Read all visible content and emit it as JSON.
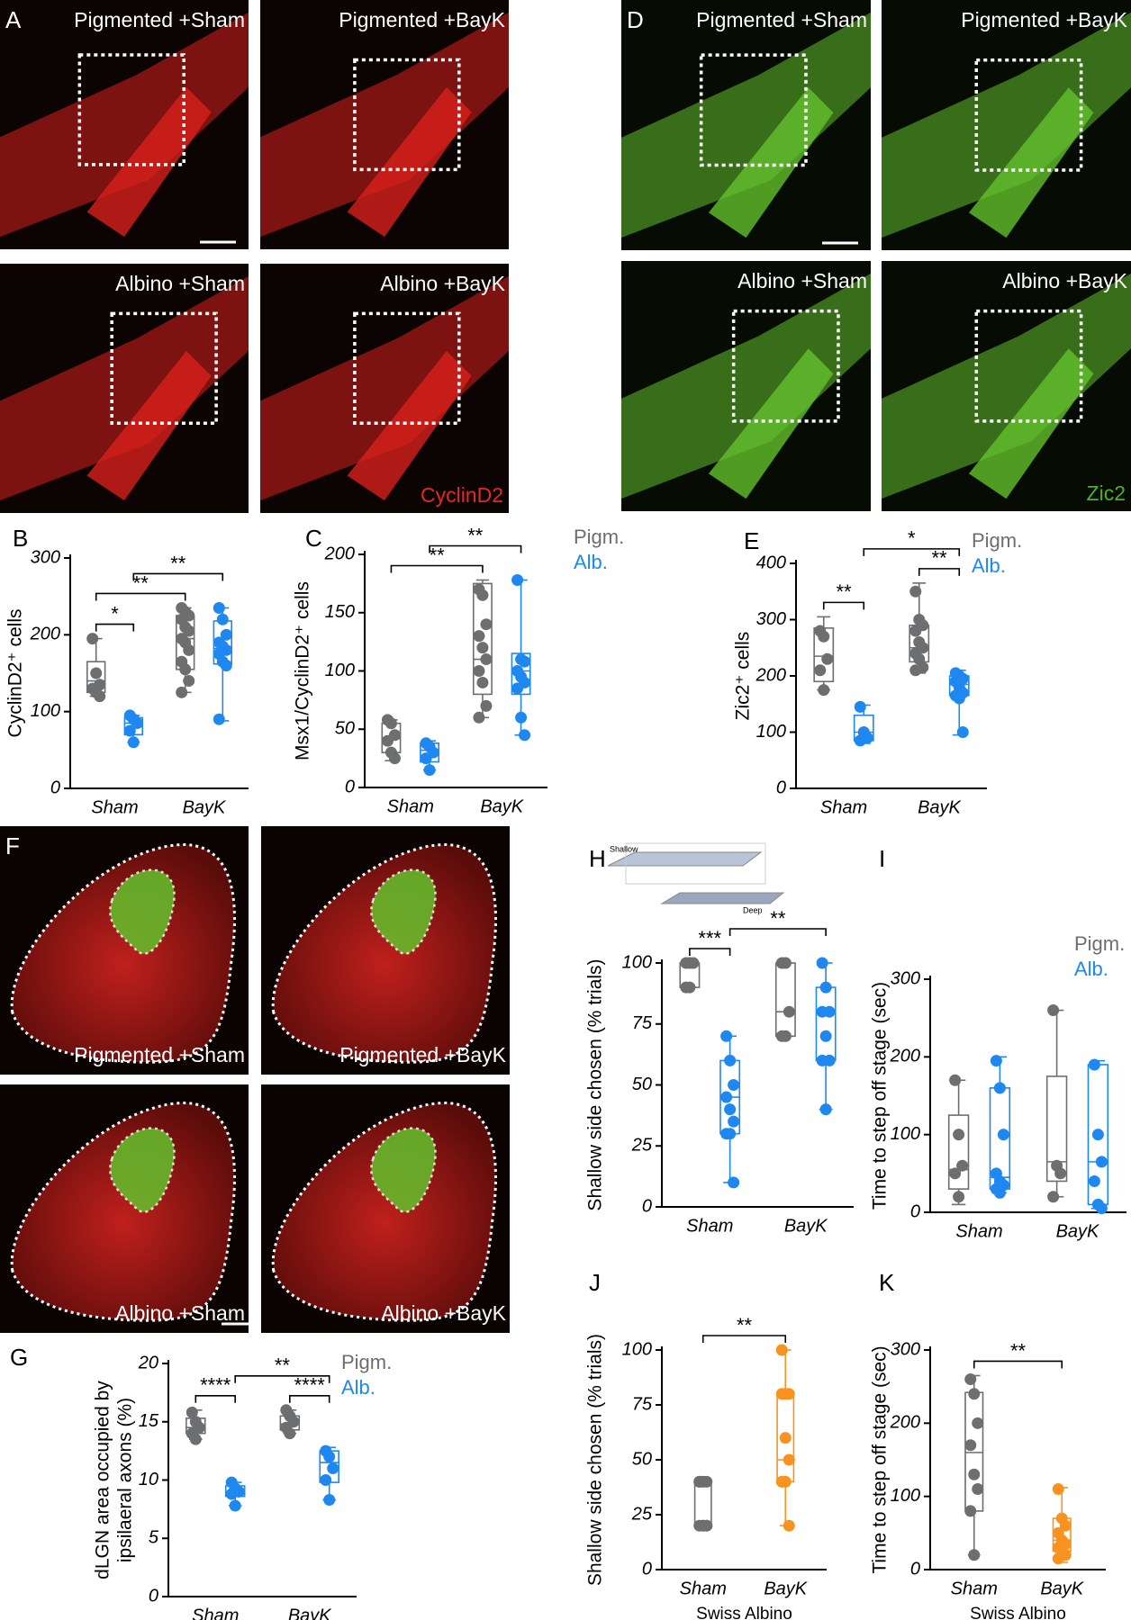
{
  "image_panels": [
    {
      "letter": "A",
      "labels": [
        "Pigmented +Sham",
        "Pigmented +BayK",
        "Albino +Sham",
        "Albino +BayK"
      ],
      "stain": "CyclinD2"
    },
    {
      "letter": "D",
      "labels": [
        "Pigmented +Sham",
        "Pigmented +BayK",
        "Albino +Sham",
        "Albino +BayK"
      ],
      "stain": "Zic2"
    },
    {
      "letter": "F",
      "labels": [
        "Pigmented +Sham",
        "Pigmented +BayK",
        "Albino +Sham",
        "Albino +BayK"
      ]
    }
  ],
  "chart_data": [
    {
      "type": "box",
      "panel": "B",
      "ylabel": "CyclinD2⁺ cells",
      "categories": [
        "Sham",
        "BayK"
      ],
      "ylim": [
        0,
        300
      ],
      "yticks": [
        0,
        100,
        200,
        300
      ],
      "series": [
        {
          "color": "#6d6e70",
          "boxes": [
            {
              "min": 120,
              "q1": 125,
              "median": 140,
              "q3": 165,
              "max": 195
            },
            {
              "min": 125,
              "q1": 155,
              "median": 195,
              "q3": 225,
              "max": 235
            }
          ],
          "points": [
            [
              195,
              150,
              135,
              130,
              125,
              120
            ],
            [
              235,
              230,
              225,
              220,
              210,
              205,
              195,
              190,
              180,
              165,
              155,
              140,
              125
            ]
          ]
        },
        {
          "color": "#1e88f0",
          "boxes": [
            {
              "min": 60,
              "q1": 70,
              "median": 85,
              "q3": 92,
              "max": 95
            },
            {
              "min": 88,
              "q1": 162,
              "median": 182,
              "q3": 218,
              "max": 235
            }
          ],
          "points": [
            [
              95,
              90,
              85,
              75,
              60
            ],
            [
              235,
              220,
              200,
              190,
              185,
              180,
              175,
              165,
              160,
              90
            ]
          ]
        }
      ],
      "brackets": [
        {
          "pair": [
            [
              0,
              0
            ],
            [
              1,
              0
            ]
          ],
          "label": "*"
        },
        {
          "pair": [
            [
              0,
              0
            ],
            [
              0,
              1
            ]
          ],
          "label": "**"
        },
        {
          "pair": [
            [
              1,
              0
            ],
            [
              1,
              1
            ]
          ],
          "label": "**"
        }
      ]
    },
    {
      "type": "box",
      "panel": "C",
      "ylabel": "Msx1/CyclinD2⁺ cells",
      "categories": [
        "Sham",
        "BayK"
      ],
      "ylim": [
        0,
        200
      ],
      "yticks": [
        0,
        50,
        100,
        150,
        200
      ],
      "series": [
        {
          "name": "Pigm.",
          "color": "#6d6e70",
          "boxes": [
            {
              "min": 23,
              "q1": 30,
              "median": 42,
              "q3": 55,
              "max": 58
            },
            {
              "min": 60,
              "q1": 80,
              "median": 110,
              "q3": 175,
              "max": 178
            }
          ],
          "points": [
            [
              58,
              55,
              45,
              40,
              30,
              25
            ],
            [
              170,
              165,
              140,
              130,
              120,
              110,
              100,
              90,
              70,
              60
            ]
          ]
        },
        {
          "name": "Alb.",
          "color": "#1e88f0",
          "boxes": [
            {
              "min": 15,
              "q1": 22,
              "median": 32,
              "q3": 38,
              "max": 40
            },
            {
              "min": 45,
              "q1": 80,
              "median": 100,
              "q3": 115,
              "max": 178
            }
          ],
          "points": [
            [
              38,
              35,
              30,
              25,
              15
            ],
            [
              178,
              110,
              108,
              100,
              95,
              90,
              85,
              60,
              45
            ]
          ]
        }
      ],
      "brackets": [
        {
          "pair": [
            [
              0,
              0
            ],
            [
              0,
              1
            ]
          ],
          "label": "**"
        },
        {
          "pair": [
            [
              1,
              0
            ],
            [
              1,
              1
            ]
          ],
          "label": "**"
        }
      ]
    },
    {
      "type": "box",
      "panel": "E",
      "ylabel": "Zic2⁺ cells",
      "categories": [
        "Sham",
        "BayK"
      ],
      "ylim": [
        0,
        400
      ],
      "yticks": [
        0,
        100,
        200,
        300,
        400
      ],
      "series": [
        {
          "name": "Pigm.",
          "color": "#6d6e70",
          "boxes": [
            {
              "min": 175,
              "q1": 190,
              "median": 235,
              "q3": 285,
              "max": 305
            },
            {
              "min": 205,
              "q1": 225,
              "median": 250,
              "q3": 290,
              "max": 365
            }
          ],
          "points": [
            [
              280,
              270,
              230,
              210,
              175
            ],
            [
              350,
              300,
              290,
              280,
              260,
              250,
              240,
              230,
              215,
              210
            ]
          ]
        },
        {
          "name": "Alb.",
          "color": "#1e88f0",
          "boxes": [
            {
              "min": 80,
              "q1": 85,
              "median": 100,
              "q3": 130,
              "max": 148
            },
            {
              "min": 95,
              "q1": 165,
              "median": 185,
              "q3": 200,
              "max": 210
            }
          ],
          "points": [
            [
              145,
              100,
              90,
              85
            ],
            [
              205,
              200,
              195,
              190,
              180,
              170,
              165,
              160,
              100
            ]
          ]
        }
      ],
      "brackets": [
        {
          "pair": [
            [
              0,
              0
            ],
            [
              1,
              0
            ]
          ],
          "label": "**"
        },
        {
          "pair": [
            [
              0,
              1
            ],
            [
              1,
              1
            ]
          ],
          "label": "**"
        },
        {
          "pair": [
            [
              1,
              0
            ],
            [
              1,
              1
            ]
          ],
          "label": "*"
        }
      ]
    },
    {
      "type": "box",
      "panel": "G",
      "ylabel": [
        "dLGN area occupied by",
        "ipsilaeral axons (%)"
      ],
      "categories": [
        "Sham",
        "BayK"
      ],
      "ylim": [
        0,
        20
      ],
      "yticks": [
        0,
        5,
        10,
        15,
        20
      ],
      "series": [
        {
          "name": "Pigm.",
          "color": "#6d6e70",
          "boxes": [
            {
              "min": 13.5,
              "q1": 14,
              "median": 14.5,
              "q3": 15.3,
              "max": 16
            },
            {
              "min": 14,
              "q1": 14.3,
              "median": 14.8,
              "q3": 15.5,
              "max": 16
            }
          ],
          "points": [
            [
              15.8,
              15,
              14.5,
              14,
              13.5
            ],
            [
              16,
              15.5,
              15,
              14.5,
              14
            ]
          ]
        },
        {
          "name": "Alb.",
          "color": "#1e88f0",
          "boxes": [
            {
              "min": 7.8,
              "q1": 8.6,
              "median": 9,
              "q3": 9.5,
              "max": 9.8
            },
            {
              "min": 8.3,
              "q1": 9.8,
              "median": 11.5,
              "q3": 12.5,
              "max": 12.8
            }
          ],
          "points": [
            [
              9.8,
              9.3,
              9,
              8.8,
              7.8
            ],
            [
              12.5,
              12,
              11,
              10,
              8.3
            ]
          ]
        }
      ],
      "brackets": [
        {
          "pair": [
            [
              0,
              0
            ],
            [
              1,
              0
            ]
          ],
          "label": "****"
        },
        {
          "pair": [
            [
              0,
              1
            ],
            [
              1,
              1
            ]
          ],
          "label": "****"
        },
        {
          "pair": [
            [
              1,
              0
            ],
            [
              1,
              1
            ]
          ],
          "label": "**"
        }
      ]
    },
    {
      "type": "box",
      "panel": "H",
      "ylabel": "Shallow side chosen (% trials)",
      "inset_labels": [
        "Shallow",
        "Deep"
      ],
      "categories": [
        "Sham",
        "BayK"
      ],
      "ylim": [
        0,
        100
      ],
      "yticks": [
        0,
        25,
        50,
        75,
        100
      ],
      "series": [
        {
          "color": "#6d6e70",
          "boxes": [
            {
              "min": 90,
              "q1": 90,
              "median": 100,
              "q3": 100,
              "max": 100
            },
            {
              "min": 70,
              "q1": 70,
              "median": 80,
              "q3": 100,
              "max": 100
            }
          ],
          "points": [
            [
              100,
              100,
              100,
              90,
              90
            ],
            [
              100,
              100,
              80,
              70,
              70
            ]
          ]
        },
        {
          "color": "#1e88f0",
          "boxes": [
            {
              "min": 10,
              "q1": 30,
              "median": 45,
              "q3": 60,
              "max": 70
            },
            {
              "min": 40,
              "q1": 60,
              "median": 80,
              "q3": 90,
              "max": 100
            }
          ],
          "points": [
            [
              70,
              60,
              50,
              45,
              40,
              35,
              30,
              30,
              10
            ],
            [
              100,
              90,
              80,
              80,
              70,
              60,
              60,
              40
            ]
          ]
        }
      ],
      "brackets": [
        {
          "pair": [
            [
              0,
              0
            ],
            [
              1,
              0
            ]
          ],
          "label": "***"
        },
        {
          "pair": [
            [
              1,
              0
            ],
            [
              1,
              1
            ]
          ],
          "label": "**"
        }
      ]
    },
    {
      "type": "box",
      "panel": "I",
      "ylabel": "Time to step off stage (sec)",
      "categories": [
        "Sham",
        "BayK"
      ],
      "ylim": [
        0,
        300
      ],
      "yticks": [
        0,
        100,
        200,
        300
      ],
      "series": [
        {
          "name": "Pigm.",
          "color": "#6d6e70",
          "boxes": [
            {
              "min": 10,
              "q1": 30,
              "median": 55,
              "q3": 125,
              "max": 170
            },
            {
              "min": 20,
              "q1": 40,
              "median": 65,
              "q3": 175,
              "max": 260
            }
          ],
          "points": [
            [
              170,
              100,
              60,
              50,
              20
            ],
            [
              260,
              60,
              50,
              20
            ]
          ]
        },
        {
          "name": "Alb.",
          "color": "#1e88f0",
          "boxes": [
            {
              "min": 25,
              "q1": 30,
              "median": 45,
              "q3": 160,
              "max": 200
            },
            {
              "min": 5,
              "q1": 10,
              "median": 65,
              "q3": 190,
              "max": 195
            }
          ],
          "points": [
            [
              195,
              160,
              100,
              50,
              40,
              35,
              30,
              25
            ],
            [
              190,
              100,
              65,
              40,
              10,
              5
            ]
          ]
        }
      ],
      "brackets": []
    },
    {
      "type": "box",
      "panel": "J",
      "ylabel": "Shallow side chosen (% trials)",
      "xlabel": "Swiss Albino",
      "categories": [
        "Sham",
        "BayK"
      ],
      "ylim": [
        0,
        100
      ],
      "yticks": [
        0,
        25,
        50,
        75,
        100
      ],
      "series": [
        {
          "color": "#6d6e70",
          "boxes": [
            {
              "min": 20,
              "q1": 20,
              "median": 20,
              "q3": 40,
              "max": 40
            },
            null
          ],
          "points": [
            [
              40,
              40,
              40,
              40,
              20,
              20,
              20,
              20,
              20
            ],
            null
          ]
        },
        {
          "color": "#f7931e",
          "boxes": [
            null,
            {
              "min": 20,
              "q1": 40,
              "median": 50,
              "q3": 80,
              "max": 100
            }
          ],
          "points": [
            null,
            [
              100,
              80,
              80,
              80,
              60,
              50,
              40,
              40,
              20
            ]
          ]
        }
      ],
      "brackets": [
        {
          "pair": [
            [
              0,
              0
            ],
            [
              1,
              1
            ]
          ],
          "label": "**"
        }
      ]
    },
    {
      "type": "box",
      "panel": "K",
      "ylabel": "Time to step off stage (sec)",
      "xlabel": "Swiss Albino",
      "categories": [
        "Sham",
        "BayK"
      ],
      "ylim": [
        0,
        300
      ],
      "yticks": [
        0,
        100,
        200,
        300
      ],
      "series": [
        {
          "color": "#6d6e70",
          "boxes": [
            {
              "min": 20,
              "q1": 80,
              "median": 160,
              "q3": 242,
              "max": 265
            },
            null
          ],
          "points": [
            [
              260,
              240,
              200,
              170,
              130,
              110,
              80,
              20
            ],
            null
          ]
        },
        {
          "color": "#f7931e",
          "boxes": [
            null,
            {
              "min": 10,
              "q1": 25,
              "median": 40,
              "q3": 70,
              "max": 112
            }
          ],
          "points": [
            null,
            [
              110,
              70,
              60,
              50,
              40,
              35,
              30,
              25,
              20,
              15
            ]
          ]
        }
      ],
      "brackets": [
        {
          "pair": [
            [
              0,
              0
            ],
            [
              1,
              1
            ]
          ],
          "label": "**"
        }
      ]
    }
  ]
}
